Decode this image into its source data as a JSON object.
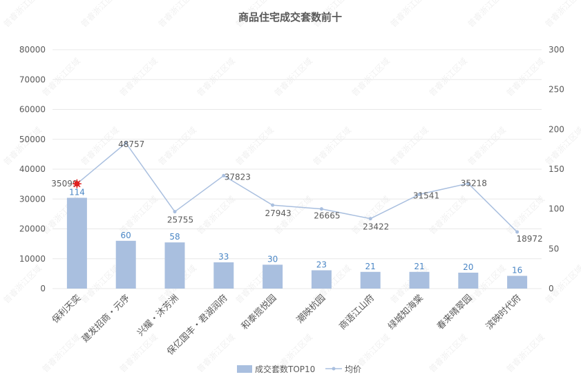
{
  "chart_data": {
    "type": "bar+line",
    "title": "商品住宅成交套数前十",
    "categories": [
      "保利天奕",
      "建发招商・元序",
      "兴耀・沐芳洲",
      "保亿国丰・君湖润府",
      "和泰揽悦园",
      "潮映杭园",
      "商语江山府",
      "绿城知海棠",
      "春来晴翠园",
      "滨映时代府"
    ],
    "series": [
      {
        "name": "成交套数TOP10",
        "type": "bar",
        "axis": "right",
        "values": [
          114,
          60,
          58,
          33,
          30,
          23,
          21,
          21,
          20,
          16
        ],
        "color": "#a9bfdf"
      },
      {
        "name": "均价",
        "type": "line",
        "axis": "left",
        "values": [
          35099,
          48757,
          25755,
          37823,
          27943,
          26665,
          23422,
          31541,
          35218,
          18972
        ],
        "color": "#a9bfdf"
      }
    ],
    "left_axis": {
      "min": 0,
      "max": 80000,
      "step": 10000,
      "ticks": [
        "0",
        "10000",
        "20000",
        "30000",
        "40000",
        "50000",
        "60000",
        "70000",
        "80000"
      ]
    },
    "right_axis": {
      "min": 0,
      "max": 300,
      "step": 50,
      "ticks": [
        "0",
        "50",
        "100",
        "150",
        "200",
        "250",
        "300"
      ]
    },
    "grid": true,
    "legend": "bottom",
    "first_point_label_overlap": "35099",
    "watermark": "普睿浙江区域"
  }
}
